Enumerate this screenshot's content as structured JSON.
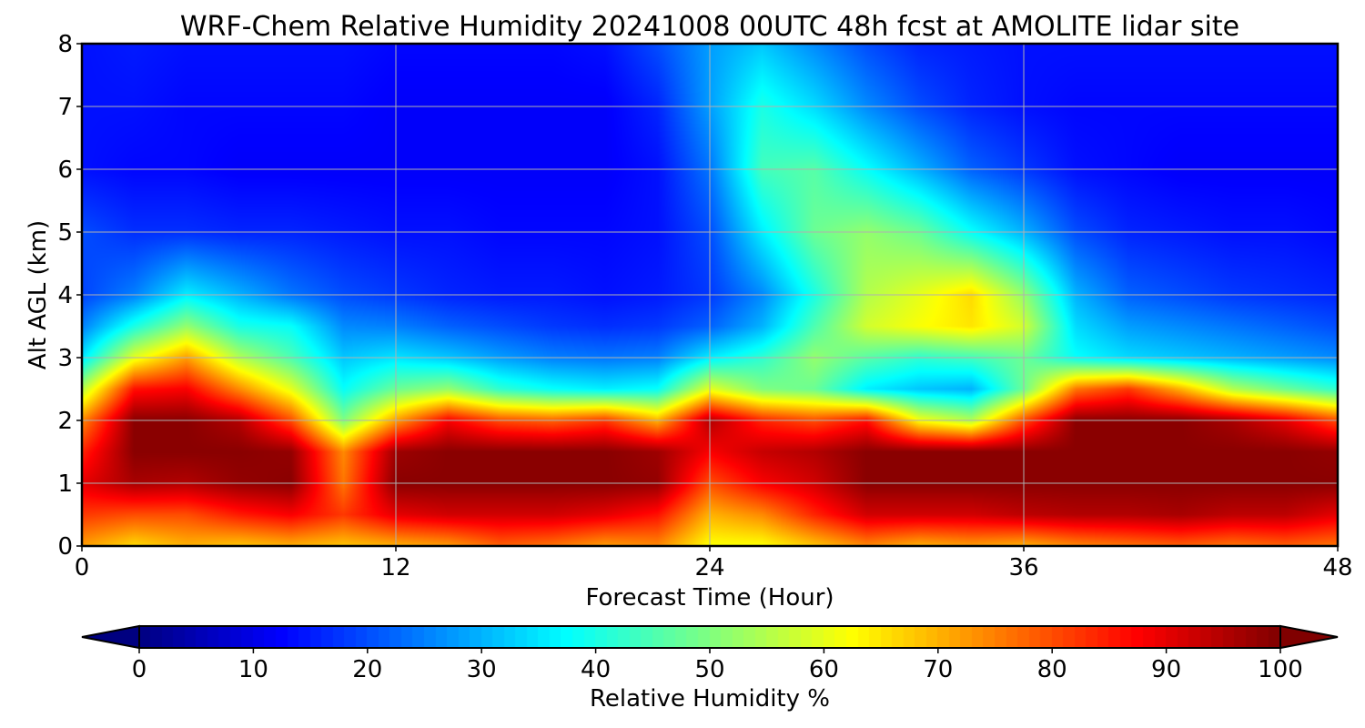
{
  "chart_data": {
    "type": "heatmap",
    "title": "WRF-Chem Relative Humidity 20241008 00UTC 48h fcst at AMOLITE lidar site",
    "xlabel": "Forecast Time (Hour)",
    "ylabel": "Alt AGL (km)",
    "xlim": [
      0,
      48
    ],
    "ylim": [
      0,
      8
    ],
    "x_ticks": [
      "0",
      "12",
      "24",
      "36",
      "48"
    ],
    "x_tick_values": [
      0,
      12,
      24,
      36,
      48
    ],
    "y_ticks": [
      "0",
      "1",
      "2",
      "3",
      "4",
      "5",
      "6",
      "7",
      "8"
    ],
    "y_tick_values": [
      0,
      1,
      2,
      3,
      4,
      5,
      6,
      7,
      8
    ],
    "grid": true,
    "colormap": "jet",
    "colorbar": {
      "label": "Relative Humidity %",
      "range": [
        0,
        100
      ],
      "ticks": [
        "0",
        "10",
        "20",
        "30",
        "40",
        "50",
        "60",
        "70",
        "80",
        "90",
        "100"
      ],
      "tick_values": [
        0,
        10,
        20,
        30,
        40,
        50,
        60,
        70,
        80,
        90,
        100
      ],
      "extend": "both"
    },
    "x": [
      0,
      2,
      4,
      6,
      8,
      10,
      12,
      14,
      16,
      18,
      20,
      22,
      24,
      26,
      28,
      30,
      32,
      34,
      36,
      38,
      40,
      42,
      44,
      46,
      48
    ],
    "y": [
      0,
      0.5,
      1,
      1.5,
      2,
      2.5,
      3,
      3.5,
      4,
      5,
      6,
      7,
      8
    ],
    "z": [
      [
        72,
        66,
        70,
        68,
        70,
        68,
        70,
        72,
        78,
        76,
        72,
        74,
        62,
        62,
        68,
        74,
        70,
        72,
        70,
        74,
        76,
        78,
        76,
        78,
        76
      ],
      [
        82,
        80,
        80,
        85,
        88,
        82,
        90,
        92,
        92,
        92,
        90,
        86,
        70,
        74,
        84,
        92,
        92,
        92,
        94,
        95,
        95,
        96,
        94,
        94,
        90
      ],
      [
        90,
        96,
        95,
        98,
        99,
        76,
        99,
        99,
        99,
        99,
        99,
        98,
        80,
        88,
        92,
        99,
        99,
        99,
        99,
        99,
        99,
        99,
        99,
        99,
        99
      ],
      [
        84,
        99,
        99,
        99,
        98,
        74,
        97,
        99,
        99,
        99,
        99,
        97,
        88,
        93,
        95,
        99,
        99,
        99,
        99,
        99,
        99,
        99,
        99,
        99,
        98
      ],
      [
        74,
        99,
        99,
        95,
        80,
        50,
        72,
        88,
        80,
        78,
        82,
        70,
        95,
        84,
        80,
        86,
        62,
        55,
        80,
        99,
        99,
        99,
        96,
        90,
        80
      ],
      [
        55,
        86,
        88,
        74,
        60,
        38,
        48,
        52,
        42,
        38,
        36,
        38,
        60,
        50,
        48,
        36,
        32,
        30,
        48,
        76,
        82,
        70,
        55,
        48,
        42
      ],
      [
        35,
        60,
        72,
        55,
        45,
        32,
        35,
        32,
        28,
        25,
        24,
        25,
        36,
        42,
        52,
        46,
        42,
        44,
        48,
        38,
        34,
        32,
        30,
        28,
        26
      ],
      [
        25,
        40,
        52,
        40,
        38,
        26,
        25,
        22,
        20,
        18,
        17,
        18,
        22,
        30,
        45,
        58,
        62,
        65,
        58,
        34,
        28,
        26,
        24,
        22,
        20
      ],
      [
        19,
        25,
        36,
        30,
        24,
        20,
        18,
        16,
        15,
        15,
        14,
        15,
        18,
        26,
        40,
        55,
        60,
        66,
        52,
        30,
        22,
        20,
        18,
        17,
        16
      ],
      [
        20,
        17,
        17,
        16,
        16,
        15,
        14,
        14,
        13,
        13,
        13,
        14,
        20,
        36,
        48,
        52,
        48,
        38,
        30,
        20,
        16,
        15,
        14,
        14,
        13
      ],
      [
        14,
        13,
        13,
        12,
        12,
        12,
        12,
        12,
        12,
        12,
        12,
        14,
        24,
        44,
        46,
        38,
        30,
        22,
        18,
        14,
        13,
        12,
        12,
        12,
        12
      ],
      [
        14,
        14,
        13,
        13,
        13,
        13,
        12,
        12,
        12,
        12,
        12,
        16,
        28,
        40,
        34,
        26,
        20,
        16,
        14,
        13,
        13,
        13,
        13,
        13,
        13
      ],
      [
        14,
        15,
        14,
        14,
        14,
        14,
        13,
        13,
        13,
        13,
        14,
        20,
        28,
        32,
        26,
        20,
        16,
        15,
        14,
        14,
        14,
        14,
        14,
        14,
        14
      ]
    ]
  }
}
